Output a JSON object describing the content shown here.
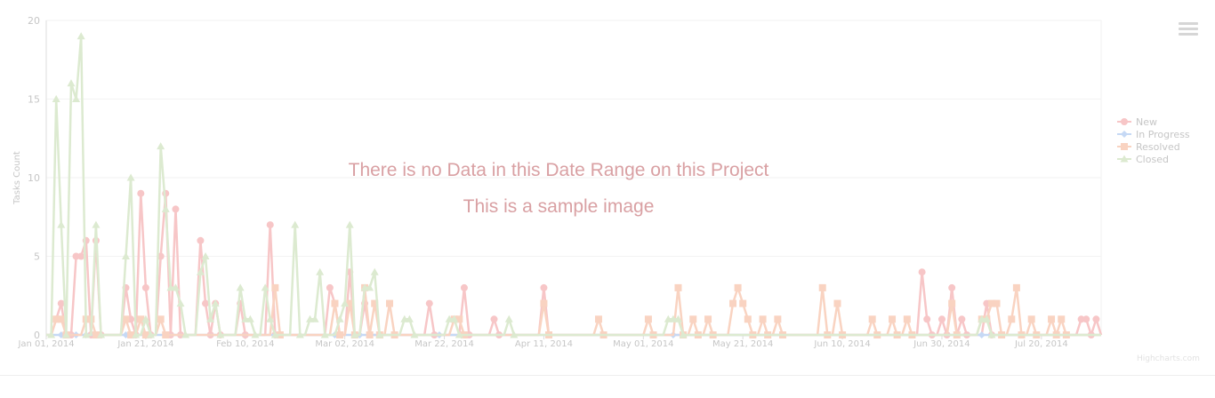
{
  "overlay": {
    "message": "There is no Data in this Date Range on this Project",
    "note": "This is a sample image"
  },
  "credits": "Highcharts.com",
  "colors": {
    "new": "#f7c6c7",
    "in_progress": "#c6d9f5",
    "resolved": "#f9d3c1",
    "closed": "#dcead0",
    "axis_text": "#c6c6c6",
    "grid": "#f2f2f2",
    "overlay_text": "#d9a0a3"
  },
  "chart_data": {
    "type": "line",
    "title": "",
    "xlabel": "",
    "ylabel": "Tasks Count",
    "ylim": [
      0,
      20
    ],
    "yticks": [
      "0",
      "5",
      "10",
      "15",
      "20"
    ],
    "xlim": [
      "2014-01-01",
      "2014-08-01"
    ],
    "xticks": [
      {
        "date": "2014-01-01",
        "label": "Jan 01, 2014"
      },
      {
        "date": "2014-01-21",
        "label": "Jan 21, 2014"
      },
      {
        "date": "2014-02-10",
        "label": "Feb 10, 2014"
      },
      {
        "date": "2014-03-02",
        "label": "Mar 02, 2014"
      },
      {
        "date": "2014-03-22",
        "label": "Mar 22, 2014"
      },
      {
        "date": "2014-04-11",
        "label": "Apr 11, 2014"
      },
      {
        "date": "2014-05-01",
        "label": "May 01, 2014"
      },
      {
        "date": "2014-05-21",
        "label": "May 21, 2014"
      },
      {
        "date": "2014-06-10",
        "label": "Jun 10, 2014"
      },
      {
        "date": "2014-06-30",
        "label": "Jun 30, 2014"
      },
      {
        "date": "2014-07-20",
        "label": "Jul 20, 2014"
      }
    ],
    "grid": true,
    "legend_position": "right",
    "series": [
      {
        "name": "New",
        "marker": "circle",
        "color_key": "new",
        "points": [
          [
            "2014-01-03",
            1
          ],
          [
            "2014-01-04",
            2
          ],
          [
            "2014-01-06",
            0
          ],
          [
            "2014-01-07",
            5
          ],
          [
            "2014-01-08",
            5
          ],
          [
            "2014-01-09",
            6
          ],
          [
            "2014-01-10",
            0
          ],
          [
            "2014-01-11",
            6
          ],
          [
            "2014-01-12",
            0
          ],
          [
            "2014-01-17",
            3
          ],
          [
            "2014-01-18",
            1
          ],
          [
            "2014-01-19",
            0
          ],
          [
            "2014-01-20",
            9
          ],
          [
            "2014-01-21",
            3
          ],
          [
            "2014-01-22",
            0
          ],
          [
            "2014-01-24",
            5
          ],
          [
            "2014-01-25",
            9
          ],
          [
            "2014-01-26",
            0
          ],
          [
            "2014-01-27",
            8
          ],
          [
            "2014-01-28",
            0
          ],
          [
            "2014-02-01",
            6
          ],
          [
            "2014-02-02",
            2
          ],
          [
            "2014-02-03",
            0
          ],
          [
            "2014-02-04",
            2
          ],
          [
            "2014-02-05",
            0
          ],
          [
            "2014-02-09",
            2
          ],
          [
            "2014-02-10",
            0
          ],
          [
            "2014-02-15",
            7
          ],
          [
            "2014-02-16",
            0
          ],
          [
            "2014-02-27",
            3
          ],
          [
            "2014-02-28",
            2
          ],
          [
            "2014-03-01",
            0
          ],
          [
            "2014-03-03",
            4
          ],
          [
            "2014-03-04",
            0
          ],
          [
            "2014-03-06",
            2
          ],
          [
            "2014-03-07",
            0
          ],
          [
            "2014-03-19",
            2
          ],
          [
            "2014-03-20",
            0
          ],
          [
            "2014-03-26",
            3
          ],
          [
            "2014-03-27",
            0
          ],
          [
            "2014-04-01",
            1
          ],
          [
            "2014-04-02",
            0
          ],
          [
            "2014-04-11",
            3
          ],
          [
            "2014-04-12",
            0
          ],
          [
            "2014-06-26",
            4
          ],
          [
            "2014-06-27",
            1
          ],
          [
            "2014-06-28",
            0
          ],
          [
            "2014-06-30",
            1
          ],
          [
            "2014-07-01",
            0
          ],
          [
            "2014-07-02",
            3
          ],
          [
            "2014-07-03",
            0
          ],
          [
            "2014-07-04",
            1
          ],
          [
            "2014-07-05",
            0
          ],
          [
            "2014-07-09",
            2
          ],
          [
            "2014-07-10",
            0
          ],
          [
            "2014-07-28",
            1
          ],
          [
            "2014-07-29",
            1
          ],
          [
            "2014-07-30",
            0
          ],
          [
            "2014-07-31",
            1
          ]
        ]
      },
      {
        "name": "In Progress",
        "marker": "diamond",
        "color_key": "in_progress",
        "points": [
          [
            "2014-01-04",
            0
          ],
          [
            "2014-01-07",
            0
          ],
          [
            "2014-01-09",
            0
          ],
          [
            "2014-01-17",
            0
          ],
          [
            "2014-01-25",
            0
          ],
          [
            "2014-02-28",
            0
          ],
          [
            "2014-03-05",
            0
          ],
          [
            "2014-03-21",
            0
          ],
          [
            "2014-05-07",
            0
          ],
          [
            "2014-07-08",
            0
          ]
        ]
      },
      {
        "name": "Resolved",
        "marker": "square",
        "color_key": "resolved",
        "points": [
          [
            "2014-01-03",
            1
          ],
          [
            "2014-01-04",
            1
          ],
          [
            "2014-01-05",
            0
          ],
          [
            "2014-01-09",
            1
          ],
          [
            "2014-01-10",
            1
          ],
          [
            "2014-01-11",
            0
          ],
          [
            "2014-01-17",
            1
          ],
          [
            "2014-01-18",
            0
          ],
          [
            "2014-01-20",
            1
          ],
          [
            "2014-01-21",
            0
          ],
          [
            "2014-01-24",
            1
          ],
          [
            "2014-01-25",
            0
          ],
          [
            "2014-02-16",
            3
          ],
          [
            "2014-02-17",
            0
          ],
          [
            "2014-02-28",
            2
          ],
          [
            "2014-03-01",
            0
          ],
          [
            "2014-03-03",
            2
          ],
          [
            "2014-03-04",
            0
          ],
          [
            "2014-03-06",
            3
          ],
          [
            "2014-03-07",
            0
          ],
          [
            "2014-03-08",
            2
          ],
          [
            "2014-03-09",
            0
          ],
          [
            "2014-03-11",
            2
          ],
          [
            "2014-03-12",
            0
          ],
          [
            "2014-03-24",
            1
          ],
          [
            "2014-03-25",
            1
          ],
          [
            "2014-03-26",
            0
          ],
          [
            "2014-04-11",
            2
          ],
          [
            "2014-04-12",
            0
          ],
          [
            "2014-04-22",
            1
          ],
          [
            "2014-04-23",
            0
          ],
          [
            "2014-05-02",
            1
          ],
          [
            "2014-05-03",
            0
          ],
          [
            "2014-05-08",
            3
          ],
          [
            "2014-05-09",
            0
          ],
          [
            "2014-05-11",
            1
          ],
          [
            "2014-05-12",
            0
          ],
          [
            "2014-05-14",
            1
          ],
          [
            "2014-05-15",
            0
          ],
          [
            "2014-05-19",
            2
          ],
          [
            "2014-05-20",
            3
          ],
          [
            "2014-05-21",
            2
          ],
          [
            "2014-05-22",
            1
          ],
          [
            "2014-05-23",
            0
          ],
          [
            "2014-05-25",
            1
          ],
          [
            "2014-05-26",
            0
          ],
          [
            "2014-05-28",
            1
          ],
          [
            "2014-05-29",
            0
          ],
          [
            "2014-06-06",
            3
          ],
          [
            "2014-06-07",
            0
          ],
          [
            "2014-06-09",
            2
          ],
          [
            "2014-06-10",
            0
          ],
          [
            "2014-06-16",
            1
          ],
          [
            "2014-06-17",
            0
          ],
          [
            "2014-06-20",
            1
          ],
          [
            "2014-06-21",
            0
          ],
          [
            "2014-06-23",
            1
          ],
          [
            "2014-06-24",
            0
          ],
          [
            "2014-07-02",
            2
          ],
          [
            "2014-07-03",
            0
          ],
          [
            "2014-07-08",
            1
          ],
          [
            "2014-07-09",
            1
          ],
          [
            "2014-07-10",
            2
          ],
          [
            "2014-07-11",
            2
          ],
          [
            "2014-07-12",
            0
          ],
          [
            "2014-07-14",
            1
          ],
          [
            "2014-07-15",
            3
          ],
          [
            "2014-07-16",
            0
          ],
          [
            "2014-07-18",
            1
          ],
          [
            "2014-07-19",
            0
          ],
          [
            "2014-07-22",
            1
          ],
          [
            "2014-07-23",
            0
          ],
          [
            "2014-07-24",
            1
          ],
          [
            "2014-07-25",
            0
          ]
        ]
      },
      {
        "name": "Closed",
        "marker": "triangle",
        "color_key": "closed",
        "points": [
          [
            "2014-01-02",
            0
          ],
          [
            "2014-01-03",
            15
          ],
          [
            "2014-01-04",
            7
          ],
          [
            "2014-01-05",
            0
          ],
          [
            "2014-01-06",
            16
          ],
          [
            "2014-01-07",
            15
          ],
          [
            "2014-01-08",
            19
          ],
          [
            "2014-01-09",
            0
          ],
          [
            "2014-01-11",
            7
          ],
          [
            "2014-01-12",
            0
          ],
          [
            "2014-01-17",
            5
          ],
          [
            "2014-01-18",
            10
          ],
          [
            "2014-01-19",
            0
          ],
          [
            "2014-01-21",
            1
          ],
          [
            "2014-01-22",
            0
          ],
          [
            "2014-01-24",
            12
          ],
          [
            "2014-01-25",
            8
          ],
          [
            "2014-01-26",
            3
          ],
          [
            "2014-01-27",
            3
          ],
          [
            "2014-01-28",
            2
          ],
          [
            "2014-01-29",
            0
          ],
          [
            "2014-02-01",
            4
          ],
          [
            "2014-02-02",
            5
          ],
          [
            "2014-02-03",
            1
          ],
          [
            "2014-02-04",
            2
          ],
          [
            "2014-02-05",
            0
          ],
          [
            "2014-02-09",
            3
          ],
          [
            "2014-02-10",
            1
          ],
          [
            "2014-02-11",
            1
          ],
          [
            "2014-02-12",
            0
          ],
          [
            "2014-02-14",
            3
          ],
          [
            "2014-02-15",
            1
          ],
          [
            "2014-02-16",
            0
          ],
          [
            "2014-02-20",
            7
          ],
          [
            "2014-02-21",
            0
          ],
          [
            "2014-02-23",
            1
          ],
          [
            "2014-02-24",
            1
          ],
          [
            "2014-02-25",
            4
          ],
          [
            "2014-02-26",
            0
          ],
          [
            "2014-03-01",
            1
          ],
          [
            "2014-03-02",
            2
          ],
          [
            "2014-03-03",
            7
          ],
          [
            "2014-03-04",
            0
          ],
          [
            "2014-03-06",
            3
          ],
          [
            "2014-03-07",
            3
          ],
          [
            "2014-03-08",
            4
          ],
          [
            "2014-03-09",
            0
          ],
          [
            "2014-03-14",
            1
          ],
          [
            "2014-03-15",
            1
          ],
          [
            "2014-03-16",
            0
          ],
          [
            "2014-03-23",
            1
          ],
          [
            "2014-03-24",
            1
          ],
          [
            "2014-03-25",
            0
          ],
          [
            "2014-04-04",
            1
          ],
          [
            "2014-04-05",
            0
          ],
          [
            "2014-05-06",
            1
          ],
          [
            "2014-05-07",
            1
          ],
          [
            "2014-05-08",
            1
          ],
          [
            "2014-05-09",
            0
          ],
          [
            "2014-07-08",
            1
          ],
          [
            "2014-07-09",
            1
          ],
          [
            "2014-07-10",
            0
          ]
        ]
      }
    ]
  }
}
